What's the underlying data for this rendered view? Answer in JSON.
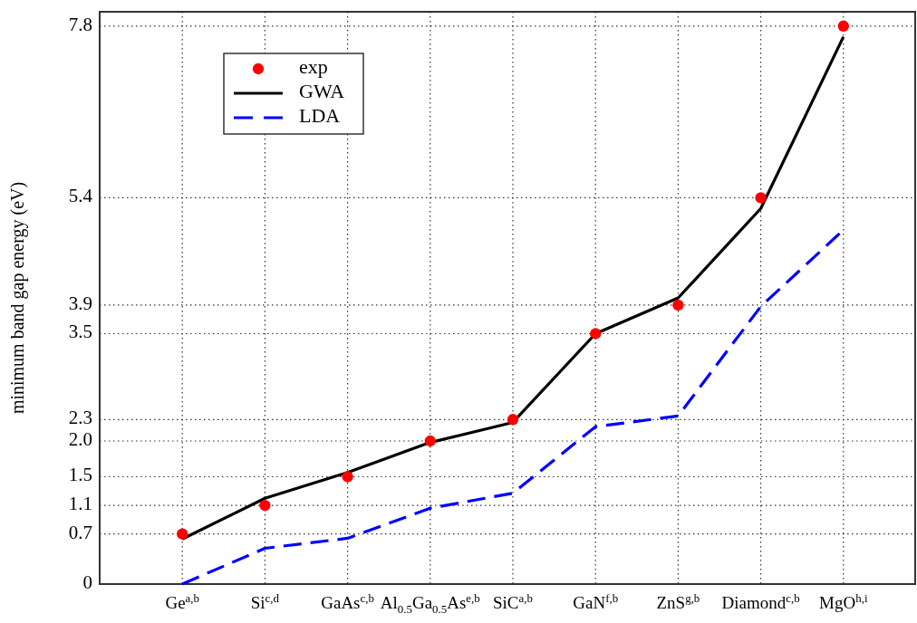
{
  "chart_data": {
    "type": "line",
    "ylabel": "minimum band gap energy (eV)",
    "categories": [
      "Ge$^{a,b}$",
      "Si$^{c,d}$",
      "GaAs$^{c,b}$",
      "Al$_{0.5}$Ga$_{0.5}$As$^{e,b}$",
      "SiC$^{a,b}$",
      "GaN$^{f,b}$",
      "ZnS$^{g,b}$",
      "Diamond$^{c,b}$",
      "MgO$^{h,i}$"
    ],
    "series": [
      {
        "name": "exp",
        "type": "scatter",
        "color": "#ff0000",
        "marker": "circle",
        "values": [
          0.7,
          1.1,
          1.5,
          2.0,
          2.3,
          3.5,
          3.9,
          5.4,
          7.8
        ]
      },
      {
        "name": "GWA",
        "type": "line",
        "color": "#000000",
        "line_style": "solid",
        "values": [
          0.63,
          1.2,
          1.56,
          1.98,
          2.26,
          3.5,
          4.0,
          5.25,
          7.65
        ]
      },
      {
        "name": "LDA",
        "type": "line",
        "color": "#0000ff",
        "line_style": "dashed",
        "values": [
          0,
          0.5,
          0.64,
          1.06,
          1.27,
          2.2,
          2.35,
          3.88,
          4.95
        ]
      }
    ],
    "ylim": [
      0,
      8
    ],
    "yticks": [
      0,
      0.7,
      1.1,
      1.5,
      {
        "value": 2,
        "label": "2.0"
      },
      2.3,
      3.5,
      3.9,
      5.4,
      7.8
    ],
    "grid": true,
    "legend": "top left"
  }
}
